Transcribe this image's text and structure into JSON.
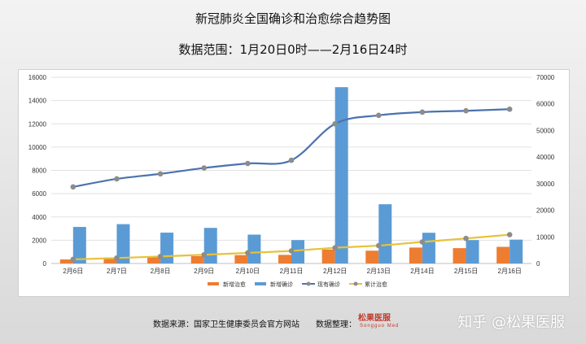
{
  "header": {
    "title": "新冠肺炎全国确诊和治愈综合趋势图",
    "subtitle": "数据范围：1月20日0时——2月16日24时"
  },
  "footer": {
    "source": "数据来源：国家卫生健康委员会官方网站",
    "organizer": "数据整理：",
    "logo_text": "松果医服",
    "logo_subtext": "Songguo Med",
    "watermark": "知乎 @松果医服"
  },
  "colors": {
    "new_cured": "#ed7d31",
    "new_confirmed": "#5b9bd5",
    "current_confirmed": "#4a72b0",
    "cumulative_cured": "#e7c23a",
    "marker": "#8c8c8c"
  },
  "chart_data": {
    "type": "bar",
    "title": "",
    "categories": [
      "2月6日",
      "2月7日",
      "2月8日",
      "2月9日",
      "2月10日",
      "2月11日",
      "2月12日",
      "2月13日",
      "2月14日",
      "2月15日",
      "2月16日"
    ],
    "left_axis": {
      "ylim": [
        0,
        16000
      ],
      "ticks": [
        0,
        2000,
        4000,
        6000,
        8000,
        10000,
        12000,
        14000,
        16000
      ]
    },
    "right_axis": {
      "ylim": [
        0,
        70000
      ],
      "ticks": [
        0,
        10000,
        20000,
        30000,
        40000,
        50000,
        60000,
        70000
      ]
    },
    "grid": true,
    "legend_position": "bottom",
    "series": [
      {
        "name": "新增治愈",
        "type": "bar",
        "axis": "left",
        "values": [
          350,
          510,
          600,
          630,
          720,
          740,
          1200,
          1100,
          1370,
          1320,
          1430
        ]
      },
      {
        "name": "新增确诊",
        "type": "bar",
        "axis": "left",
        "values": [
          3140,
          3380,
          2650,
          3060,
          2480,
          2010,
          15150,
          5090,
          2640,
          2010,
          2050
        ]
      },
      {
        "name": "现有确诊",
        "type": "line",
        "axis": "right",
        "values": [
          28800,
          31800,
          33700,
          35900,
          37600,
          38800,
          52500,
          55700,
          56900,
          57400,
          58000
        ]
      },
      {
        "name": "累计治愈",
        "type": "line",
        "axis": "right",
        "values": [
          1540,
          2050,
          2650,
          3280,
          4000,
          4740,
          5910,
          6720,
          8100,
          9420,
          10840
        ]
      }
    ]
  }
}
